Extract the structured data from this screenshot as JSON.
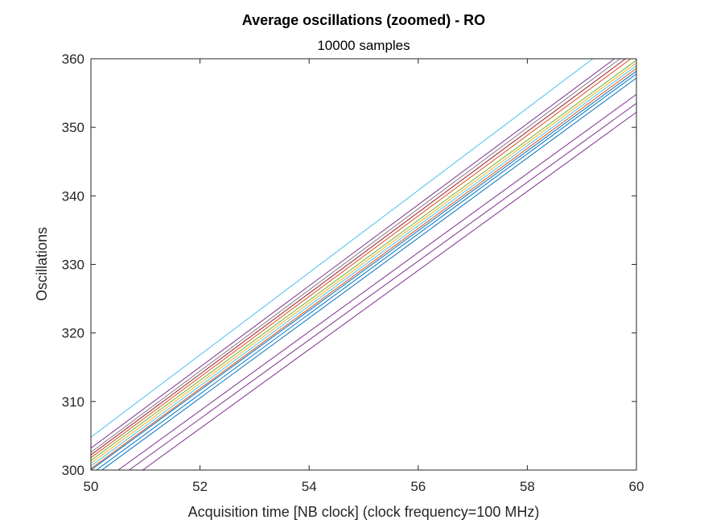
{
  "chart_data": {
    "type": "line",
    "title": "Average oscillations (zoomed) - RO",
    "subtitle": "10000 samples",
    "xlabel": "Acquisition time [NB clock] (clock frequency=100 MHz)",
    "ylabel": "Oscillations",
    "xlim": [
      50,
      60
    ],
    "ylim": [
      300,
      360
    ],
    "x_ticks": [
      50,
      52,
      54,
      56,
      58,
      60
    ],
    "y_ticks": [
      300,
      310,
      320,
      330,
      340,
      350,
      360
    ],
    "grid": false,
    "legend": "none",
    "series": [
      {
        "color": "#4DBEEE",
        "x": [
          50,
          59.2
        ],
        "y": [
          304.8,
          360
        ]
      },
      {
        "color": "#7E2F8E",
        "x": [
          50,
          59.6
        ],
        "y": [
          303.2,
          360
        ]
      },
      {
        "color": "#7F7F7F",
        "x": [
          50,
          59.7
        ],
        "y": [
          302.6,
          360
        ]
      },
      {
        "color": "#A2142F",
        "x": [
          50,
          59.8
        ],
        "y": [
          302.2,
          360
        ]
      },
      {
        "color": "#D95319",
        "x": [
          50,
          59.9
        ],
        "y": [
          301.8,
          360
        ]
      },
      {
        "color": "#77AC30",
        "x": [
          50,
          60
        ],
        "y": [
          301.4,
          359.8
        ]
      },
      {
        "color": "#EDB120",
        "x": [
          50,
          60
        ],
        "y": [
          301.0,
          359.4
        ]
      },
      {
        "color": "#4DBEEE",
        "x": [
          50,
          60
        ],
        "y": [
          300.6,
          359.0
        ]
      },
      {
        "color": "#D95319",
        "x": [
          50,
          60
        ],
        "y": [
          300.2,
          358.6
        ]
      },
      {
        "color": "#0072BD",
        "x": [
          50,
          60
        ],
        "y": [
          300.0,
          358.2
        ]
      },
      {
        "color": "#0072BD",
        "x": [
          50.1,
          60
        ],
        "y": [
          300.0,
          357.8
        ]
      },
      {
        "color": "#0072BD",
        "x": [
          50.2,
          60
        ],
        "y": [
          300.0,
          357.2
        ]
      },
      {
        "color": "#7E2F8E",
        "x": [
          50.5,
          60
        ],
        "y": [
          300.0,
          354.8
        ]
      },
      {
        "color": "#7E2F8E",
        "x": [
          50.7,
          60
        ],
        "y": [
          300.0,
          353.5
        ]
      },
      {
        "color": "#7E2F8E",
        "x": [
          50.95,
          60
        ],
        "y": [
          300.0,
          352.2
        ]
      }
    ]
  }
}
